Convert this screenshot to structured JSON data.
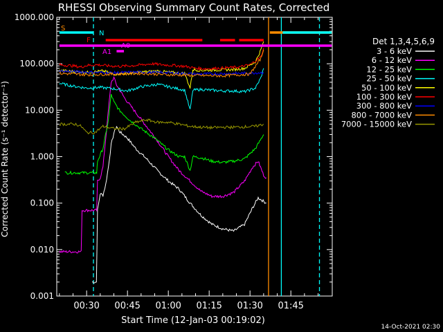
{
  "chart_data": {
    "type": "line",
    "title": "RHESSI Observing Summary Count Rates, Corrected",
    "xlabel": "Start Time (12-Jan-03 00:19:02)",
    "ylabel": "Corrected Count Rate (s⁻¹ detector⁻¹)",
    "y_scale": "log",
    "ylim": [
      0.001,
      1000
    ],
    "xlim_min": [
      19.03,
      56.2
    ],
    "grid": false,
    "x_ticks": [
      {
        "min": 30,
        "label": "00:30"
      },
      {
        "min": 45,
        "label": "00:45"
      },
      {
        "min": 60,
        "label": "01:00"
      },
      {
        "min": 75,
        "label": "01:15"
      },
      {
        "min": 90,
        "label": "01:30"
      },
      {
        "min": 105,
        "label": "01:45"
      }
    ],
    "y_ticks": [
      {
        "v": 1000,
        "label": "1000.000"
      },
      {
        "v": 100,
        "label": "100.000"
      },
      {
        "v": 10,
        "label": "10.000"
      },
      {
        "v": 1,
        "label": "1.000"
      },
      {
        "v": 0.1,
        "label": "0.100"
      },
      {
        "v": 0.01,
        "label": "0.010"
      },
      {
        "v": 0.001,
        "label": "0.001"
      }
    ],
    "legend": {
      "title": "Det 1,3,4,5,6,9",
      "position": "right"
    },
    "series": [
      {
        "name": "3 - 6 keV",
        "color": "#ffffff",
        "points": [
          [
            32,
            0.002
          ],
          [
            33.6,
            0.002
          ],
          [
            34,
            0.07
          ],
          [
            35,
            0.16
          ],
          [
            36,
            0.15
          ],
          [
            37,
            0.25
          ],
          [
            38,
            0.6
          ],
          [
            39,
            1.8
          ],
          [
            40,
            3.2
          ],
          [
            41,
            4.5
          ],
          [
            42,
            3.5
          ],
          [
            45,
            2.5
          ],
          [
            48,
            1.5
          ],
          [
            52,
            0.9
          ],
          [
            56,
            0.5
          ],
          [
            60,
            0.3
          ],
          [
            64,
            0.2
          ],
          [
            68,
            0.1
          ],
          [
            72,
            0.055
          ],
          [
            76,
            0.035
          ],
          [
            80,
            0.028
          ],
          [
            84,
            0.025
          ],
          [
            88,
            0.035
          ],
          [
            91,
            0.08
          ],
          [
            93,
            0.13
          ],
          [
            96,
            0.1
          ]
        ]
      },
      {
        "name": "6 - 12 keV",
        "color": "#ff00ff",
        "points": [
          [
            20,
            0.009
          ],
          [
            28,
            0.009
          ],
          [
            28.3,
            0.07
          ],
          [
            31,
            0.07
          ],
          [
            33.7,
            0.07
          ],
          [
            34,
            0.3
          ],
          [
            35,
            0.35
          ],
          [
            36,
            0.6
          ],
          [
            38,
            10
          ],
          [
            39,
            40
          ],
          [
            40,
            50
          ],
          [
            41,
            35
          ],
          [
            44,
            18
          ],
          [
            48,
            9
          ],
          [
            52,
            4.5
          ],
          [
            56,
            2.2
          ],
          [
            60,
            1
          ],
          [
            64,
            0.5
          ],
          [
            68,
            0.3
          ],
          [
            72,
            0.18
          ],
          [
            76,
            0.14
          ],
          [
            80,
            0.14
          ],
          [
            84,
            0.17
          ],
          [
            88,
            0.3
          ],
          [
            91,
            0.6
          ],
          [
            93,
            0.8
          ],
          [
            95,
            0.4
          ],
          [
            96,
            0.35
          ]
        ]
      },
      {
        "name": "12 - 25 keV",
        "color": "#00ff00",
        "points": [
          [
            22,
            0.45
          ],
          [
            32,
            0.45
          ],
          [
            33.7,
            0.45
          ],
          [
            34,
            0.8
          ],
          [
            36,
            1.5
          ],
          [
            38,
            6
          ],
          [
            39,
            22
          ],
          [
            40,
            15
          ],
          [
            42,
            10
          ],
          [
            46,
            6
          ],
          [
            50,
            4
          ],
          [
            55,
            2.5
          ],
          [
            60,
            1.4
          ],
          [
            64,
            1
          ],
          [
            66,
            1
          ],
          [
            68,
            0.5
          ],
          [
            69,
            1
          ],
          [
            72,
            0.95
          ],
          [
            76,
            0.8
          ],
          [
            80,
            0.75
          ],
          [
            84,
            0.8
          ],
          [
            88,
            0.9
          ],
          [
            92,
            1.5
          ],
          [
            95,
            3
          ]
        ]
      },
      {
        "name": "25 - 50 keV",
        "color": "#00ffff",
        "points": [
          [
            20,
            38
          ],
          [
            25,
            33
          ],
          [
            30,
            30
          ],
          [
            35,
            31
          ],
          [
            40,
            29
          ],
          [
            45,
            26
          ],
          [
            50,
            32
          ],
          [
            56,
            36
          ],
          [
            60,
            32
          ],
          [
            66,
            27
          ],
          [
            68,
            10
          ],
          [
            69,
            27
          ],
          [
            72,
            28
          ],
          [
            76,
            27
          ],
          [
            80,
            26
          ],
          [
            84,
            26
          ],
          [
            88,
            25
          ],
          [
            92,
            30
          ],
          [
            94,
            50
          ],
          [
            95,
            80
          ]
        ]
      },
      {
        "name": "50 - 100 keV",
        "color": "#ffff00",
        "points": [
          [
            20,
            72
          ],
          [
            25,
            68
          ],
          [
            30,
            65
          ],
          [
            34,
            68
          ],
          [
            36,
            70
          ],
          [
            40,
            60
          ],
          [
            45,
            62
          ],
          [
            50,
            66
          ],
          [
            56,
            70
          ],
          [
            60,
            66
          ],
          [
            66,
            62
          ],
          [
            68,
            30
          ],
          [
            69,
            75
          ],
          [
            72,
            72
          ],
          [
            76,
            73
          ],
          [
            80,
            74
          ],
          [
            84,
            75
          ],
          [
            88,
            80
          ],
          [
            92,
            110
          ],
          [
            94,
            200
          ],
          [
            95,
            300
          ]
        ]
      },
      {
        "name": "100 - 300 keV",
        "color": "#ff0000",
        "points": [
          [
            20,
            95
          ],
          [
            25,
            90
          ],
          [
            28,
            85
          ],
          [
            30,
            92
          ],
          [
            34,
            95
          ],
          [
            38,
            90
          ],
          [
            42,
            88
          ],
          [
            48,
            92
          ],
          [
            54,
            100
          ],
          [
            58,
            95
          ],
          [
            62,
            92
          ],
          [
            66,
            88
          ],
          [
            70,
            80
          ],
          [
            74,
            78
          ],
          [
            78,
            80
          ],
          [
            82,
            82
          ],
          [
            86,
            85
          ],
          [
            90,
            95
          ],
          [
            94,
            140
          ],
          [
            95,
            220
          ]
        ]
      },
      {
        "name": "300 - 800 keV",
        "color": "#0000ff",
        "points": [
          [
            20,
            70
          ],
          [
            30,
            66
          ],
          [
            40,
            64
          ],
          [
            50,
            66
          ],
          [
            60,
            64
          ],
          [
            70,
            60
          ],
          [
            80,
            61
          ],
          [
            90,
            63
          ],
          [
            95,
            65
          ]
        ]
      },
      {
        "name": "800 - 7000 keV",
        "color": "#ff8c00",
        "points": [
          [
            20,
            62
          ],
          [
            30,
            58
          ],
          [
            40,
            60
          ],
          [
            50,
            62
          ],
          [
            60,
            58
          ],
          [
            70,
            56
          ],
          [
            80,
            55
          ],
          [
            90,
            60
          ],
          [
            94,
            130
          ],
          [
            95,
            200
          ]
        ]
      },
      {
        "name": "7000 - 15000 keV",
        "color": "#999900",
        "points": [
          [
            20,
            5
          ],
          [
            26,
            5
          ],
          [
            28,
            4.5
          ],
          [
            30,
            3.3
          ],
          [
            33,
            3.3
          ],
          [
            36,
            4.5
          ],
          [
            40,
            4
          ],
          [
            44,
            4
          ],
          [
            48,
            5.5
          ],
          [
            52,
            6.2
          ],
          [
            56,
            5.5
          ],
          [
            60,
            5.5
          ],
          [
            64,
            5
          ],
          [
            68,
            4.5
          ],
          [
            72,
            4.3
          ],
          [
            76,
            4.2
          ],
          [
            80,
            4.3
          ],
          [
            84,
            4.3
          ],
          [
            88,
            4.4
          ],
          [
            92,
            4.5
          ],
          [
            95,
            5
          ]
        ]
      }
    ],
    "flag_bars": [
      {
        "label": "S",
        "color": "#ff8c00",
        "segments": [
          [
            97.3,
            120.0
          ]
        ]
      },
      {
        "label": "N",
        "color": "#00ffff",
        "segments": [
          [
            20,
            32.5
          ],
          [
            102,
            120.0
          ]
        ]
      },
      {
        "label": "F",
        "color": "#ff0000",
        "segments": [
          [
            37,
            72.5
          ],
          [
            79,
            84.5
          ],
          [
            86,
            95
          ]
        ]
      },
      {
        "label": "A0",
        "color": "#ff00ff",
        "segments": [
          [
            20,
            120.0
          ]
        ]
      },
      {
        "label": "A1",
        "color": "#ff00ff",
        "segments": [
          [
            41,
            43.7
          ]
        ]
      }
    ],
    "vertical_markers": [
      {
        "min": 32.5,
        "color": "#00ffff",
        "style": "dashed"
      },
      {
        "min": 96.8,
        "color": "#ff8c00",
        "style": "solid"
      },
      {
        "min": 101.5,
        "color": "#00ffff",
        "style": "solid"
      },
      {
        "min": 115.5,
        "color": "#00ffff",
        "style": "dashed"
      }
    ]
  },
  "footer": {
    "timestamp": "14-Oct-2021 02:30"
  }
}
